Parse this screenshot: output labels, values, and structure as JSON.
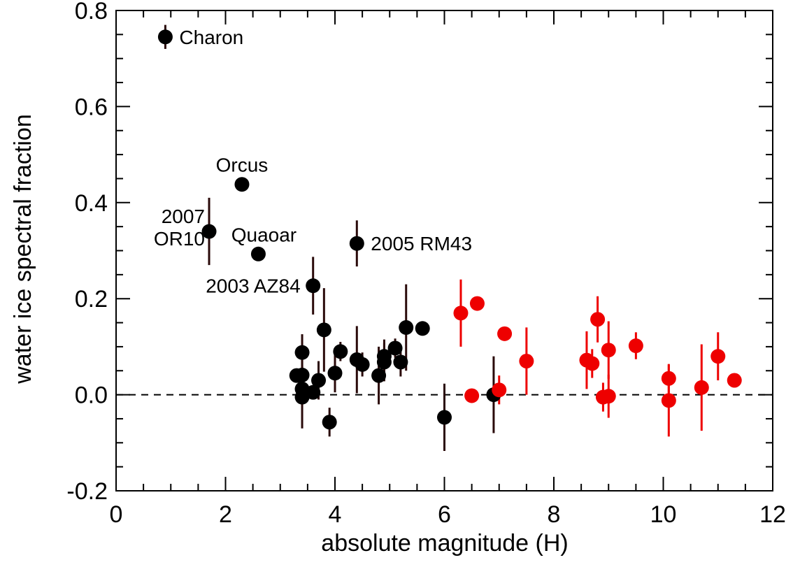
{
  "chart_data": {
    "type": "scatter",
    "title": "",
    "xlabel": "absolute magnitude (H)",
    "ylabel": "water ice spectral fraction",
    "xlim": [
      0,
      12
    ],
    "ylim": [
      -0.2,
      0.8
    ],
    "x_ticks": [
      0,
      2,
      4,
      6,
      8,
      10,
      12
    ],
    "x_tick_labels": [
      "0",
      "2",
      "4",
      "6",
      "8",
      "10",
      "12"
    ],
    "y_ticks": [
      -0.2,
      0.0,
      0.2,
      0.4,
      0.6,
      0.8
    ],
    "y_tick_labels": [
      "-0.2",
      "0.0",
      "0.2",
      "0.4",
      "0.6",
      "0.8"
    ],
    "grid": false,
    "reference_line": {
      "y": 0.0,
      "style": "dashed",
      "color": "#000000"
    },
    "series": [
      {
        "color": "#000000",
        "points": [
          {
            "x": 0.9,
            "y": 0.745,
            "err": 0.025
          },
          {
            "x": 1.7,
            "y": 0.34,
            "err": 0.07
          },
          {
            "x": 2.3,
            "y": 0.438,
            "err": 0
          },
          {
            "x": 2.6,
            "y": 0.293,
            "err": 0
          },
          {
            "x": 3.6,
            "y": 0.227,
            "err": 0.06
          },
          {
            "x": 4.4,
            "y": 0.315,
            "err": 0.048
          },
          {
            "x": 3.3,
            "y": 0.04,
            "err": 0
          },
          {
            "x": 3.4,
            "y": 0.088,
            "err": 0.038
          },
          {
            "x": 3.4,
            "y": 0.041,
            "err": 0.05
          },
          {
            "x": 3.4,
            "y": 0.012,
            "err": 0.03
          },
          {
            "x": 3.4,
            "y": -0.005,
            "err": 0.065
          },
          {
            "x": 3.6,
            "y": 0.005,
            "err": 0.015
          },
          {
            "x": 3.7,
            "y": 0.03,
            "err": 0.04
          },
          {
            "x": 3.8,
            "y": 0.135,
            "err": 0.087
          },
          {
            "x": 3.9,
            "y": -0.057,
            "err": 0.03
          },
          {
            "x": 4.0,
            "y": 0.045,
            "err": 0.04
          },
          {
            "x": 4.1,
            "y": 0.09,
            "err": 0.02
          },
          {
            "x": 4.4,
            "y": 0.073,
            "err": 0.07
          },
          {
            "x": 4.5,
            "y": 0.063,
            "err": 0.025
          },
          {
            "x": 4.8,
            "y": 0.04,
            "err": 0.06
          },
          {
            "x": 4.9,
            "y": 0.08,
            "err": 0.035
          },
          {
            "x": 4.9,
            "y": 0.068,
            "err": 0.04
          },
          {
            "x": 5.1,
            "y": 0.097,
            "err": 0.02
          },
          {
            "x": 5.2,
            "y": 0.068,
            "err": 0.03
          },
          {
            "x": 5.3,
            "y": 0.14,
            "err": 0.09
          },
          {
            "x": 5.6,
            "y": 0.138,
            "err": 0.015
          },
          {
            "x": 6.0,
            "y": -0.047,
            "err": 0.07
          },
          {
            "x": 6.9,
            "y": 0.0,
            "err": 0.08
          }
        ]
      },
      {
        "color": "#ee0000",
        "points": [
          {
            "x": 6.3,
            "y": 0.17,
            "err": 0.07
          },
          {
            "x": 6.5,
            "y": -0.002,
            "err": 0
          },
          {
            "x": 6.6,
            "y": 0.19,
            "err": 0
          },
          {
            "x": 7.0,
            "y": 0.01,
            "err": 0.03
          },
          {
            "x": 7.1,
            "y": 0.127,
            "err": 0
          },
          {
            "x": 7.5,
            "y": 0.07,
            "err": 0.07
          },
          {
            "x": 8.6,
            "y": 0.072,
            "err": 0.06
          },
          {
            "x": 8.7,
            "y": 0.065,
            "err": 0.03
          },
          {
            "x": 8.8,
            "y": 0.157,
            "err": 0.048
          },
          {
            "x": 8.9,
            "y": -0.005,
            "err": 0.03
          },
          {
            "x": 9.0,
            "y": 0.093,
            "err": 0.06
          },
          {
            "x": 9.0,
            "y": -0.003,
            "err": 0.045
          },
          {
            "x": 9.5,
            "y": 0.102,
            "err": 0.028
          },
          {
            "x": 10.1,
            "y": 0.034,
            "err": 0.03
          },
          {
            "x": 10.1,
            "y": -0.012,
            "err": 0.075
          },
          {
            "x": 10.7,
            "y": 0.015,
            "err": 0.09
          },
          {
            "x": 11.0,
            "y": 0.08,
            "err": 0.05
          },
          {
            "x": 11.3,
            "y": 0.03,
            "err": 0
          }
        ]
      }
    ],
    "annotations": [
      {
        "text": "Charon",
        "x": 0.9,
        "y": 0.745,
        "anchor": "right"
      },
      {
        "text": "Orcus",
        "x": 2.3,
        "y": 0.438,
        "anchor": "above"
      },
      {
        "text": "2007",
        "x": 1.7,
        "y": 0.34,
        "anchor": "upper-left"
      },
      {
        "text": "OR10",
        "x": 1.7,
        "y": 0.34,
        "anchor": "lower-left"
      },
      {
        "text": "Quaoar",
        "x": 2.6,
        "y": 0.293,
        "anchor": "above"
      },
      {
        "text": "2003 AZ84",
        "x": 3.6,
        "y": 0.227,
        "anchor": "left"
      },
      {
        "text": "2005 RM43",
        "x": 4.4,
        "y": 0.315,
        "anchor": "right"
      }
    ]
  }
}
